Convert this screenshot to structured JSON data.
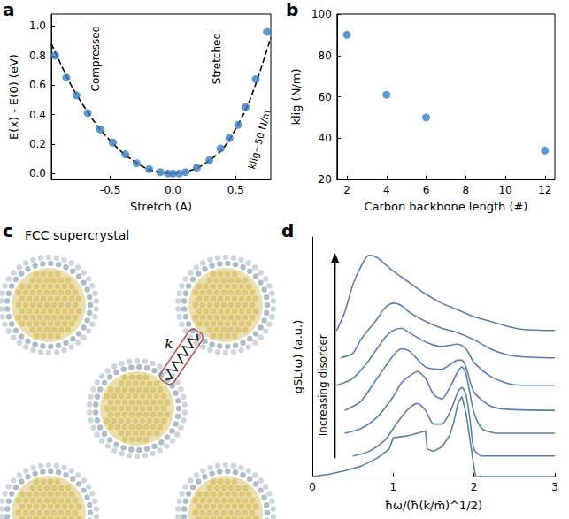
{
  "chart_data": [
    {
      "type": "scatter",
      "panel": "a",
      "xlabel": "Stretch (A)",
      "ylabel": "E(x) - E(0) (eV)",
      "xlim": [
        -0.97,
        0.78
      ],
      "xticks": [
        -0.5,
        {
          "value": 0,
          "label": "0.0"
        },
        0.5
      ],
      "ylim": [
        -0.04,
        1.08
      ],
      "yticks": [
        {
          "value": 0,
          "label": "0.0"
        },
        0.2,
        0.4,
        0.6,
        0.8,
        {
          "value": 1,
          "label": "1.0"
        }
      ],
      "grid": false,
      "annotations": [
        "Compressed",
        "Stretched",
        "klig~50 N/m"
      ],
      "series": [
        {
          "type": "scatter",
          "marker": "circle",
          "color": "#3a7cc0",
          "x": [
            -0.94,
            -0.85,
            -0.77,
            -0.68,
            -0.58,
            -0.48,
            -0.38,
            -0.29,
            -0.19,
            -0.1,
            -0.04,
            0.0,
            0.05,
            0.1,
            0.19,
            0.29,
            0.38,
            0.45,
            0.52,
            0.58,
            0.66,
            0.75
          ],
          "values": [
            0.8,
            0.65,
            0.53,
            0.41,
            0.3,
            0.21,
            0.13,
            0.07,
            0.03,
            0.01,
            0.0,
            0.0,
            0.0,
            0.01,
            0.04,
            0.09,
            0.17,
            0.24,
            0.33,
            0.45,
            0.64,
            0.96
          ]
        },
        {
          "type": "line",
          "line_style": "dashed",
          "color": "#000000",
          "x": [
            -0.97,
            -0.8,
            -0.6,
            -0.4,
            -0.2,
            0.0,
            0.2,
            0.4,
            0.6,
            0.78
          ],
          "values": [
            0.88,
            0.58,
            0.32,
            0.14,
            0.03,
            0.0,
            0.04,
            0.17,
            0.47,
            0.92
          ]
        }
      ]
    },
    {
      "type": "scatter",
      "panel": "b",
      "xlabel": "Carbon backbone length (#)",
      "ylabel": "klig (N/m)",
      "xlim": [
        1.5,
        12.5
      ],
      "xticks": [
        2,
        4,
        6,
        8,
        10,
        12
      ],
      "ylim": [
        20,
        100
      ],
      "yticks": [
        20,
        40,
        60,
        80,
        100
      ],
      "grid": false,
      "series": [
        {
          "type": "scatter",
          "marker": "circle",
          "color": "#3a7cc0",
          "x": [
            2,
            4,
            6,
            12
          ],
          "values": [
            90,
            61,
            50,
            34
          ]
        }
      ]
    },
    {
      "type": "diagram",
      "panel": "c",
      "title": "FCC supercrystal",
      "annotations": [
        "k"
      ]
    },
    {
      "type": "line",
      "panel": "d",
      "xlabel": "ħω/(ħ(k̄/m̄)^1/2)",
      "ylabel": "gSL(ω) (a.u.)",
      "xlim": [
        0,
        3
      ],
      "xticks": [
        0,
        1,
        2,
        3
      ],
      "ylim": [
        0,
        10.5
      ],
      "tick_labels": "x",
      "grid": false,
      "annotations": [
        "Increasing disorder"
      ],
      "series": [
        {
          "type": "line",
          "marker": "none",
          "color": "#5b7fae",
          "x": [
            0,
            0.2,
            0.4,
            0.6,
            0.8,
            0.95,
            1.0,
            1.1,
            1.2,
            1.3,
            1.4,
            1.42,
            1.5,
            1.6,
            1.7,
            1.75,
            1.8,
            1.85,
            1.9,
            1.95,
            2.0,
            2.02,
            2.5,
            3.0
          ],
          "values": [
            0,
            0.1,
            0.25,
            0.45,
            0.8,
            1.2,
            1.7,
            1.75,
            1.8,
            1.9,
            2.0,
            1.2,
            1.1,
            1.3,
            1.8,
            2.4,
            3.2,
            3.5,
            2.8,
            1.6,
            0.4,
            0,
            0,
            0
          ]
        },
        {
          "type": "line",
          "marker": "none",
          "color": "#5b7fae",
          "x": [
            0.5,
            0.7,
            0.9,
            1.0,
            1.1,
            1.2,
            1.3,
            1.4,
            1.5,
            1.6,
            1.7,
            1.8,
            1.85,
            1.9,
            1.95,
            2.0,
            2.1,
            3.0
          ],
          "values": [
            0.9,
            1.1,
            1.6,
            2.1,
            2.6,
            3.0,
            3.2,
            2.9,
            2.3,
            2.3,
            2.8,
            3.7,
            3.9,
            3.6,
            2.5,
            1.2,
            0.9,
            0.9
          ]
        },
        {
          "type": "line",
          "marker": "none",
          "color": "#5b7fae",
          "x": [
            0.4,
            0.6,
            0.8,
            1.0,
            1.1,
            1.2,
            1.3,
            1.4,
            1.5,
            1.6,
            1.7,
            1.8,
            1.85,
            1.9,
            2.0,
            2.1,
            2.3,
            3.0
          ],
          "values": [
            1.9,
            2.1,
            2.6,
            3.5,
            4.1,
            4.4,
            4.6,
            4.3,
            3.6,
            3.4,
            3.9,
            4.6,
            4.8,
            4.5,
            2.8,
            2.1,
            1.9,
            1.9
          ]
        },
        {
          "type": "line",
          "marker": "none",
          "color": "#5b7fae",
          "x": [
            0.4,
            0.6,
            0.8,
            1.0,
            1.1,
            1.2,
            1.4,
            1.6,
            1.8,
            1.85,
            1.9,
            2.0,
            2.2,
            2.4,
            3.0
          ],
          "values": [
            2.9,
            3.3,
            4.3,
            5.3,
            5.6,
            5.5,
            4.8,
            4.7,
            5.1,
            5.1,
            4.8,
            3.7,
            3.1,
            2.95,
            2.9
          ]
        },
        {
          "type": "line",
          "marker": "none",
          "color": "#5b7fae",
          "x": [
            0.3,
            0.5,
            0.7,
            0.9,
            1.0,
            1.1,
            1.2,
            1.4,
            1.6,
            1.8,
            1.9,
            2.0,
            2.2,
            2.4,
            2.6,
            3.0
          ],
          "values": [
            4.0,
            4.3,
            5.1,
            6.1,
            6.4,
            6.5,
            6.3,
            5.9,
            5.7,
            5.8,
            5.6,
            5.0,
            4.4,
            4.1,
            4.0,
            4.0
          ]
        },
        {
          "type": "line",
          "marker": "none",
          "color": "#5b7fae",
          "x": [
            0.35,
            0.5,
            0.6,
            0.8,
            0.9,
            1.0,
            1.1,
            1.2,
            1.4,
            1.6,
            1.8,
            2.0,
            2.2,
            2.4,
            2.6,
            3.0
          ],
          "values": [
            5.2,
            5.4,
            6.0,
            6.9,
            7.4,
            7.6,
            7.5,
            7.2,
            6.8,
            6.5,
            6.3,
            6.0,
            5.6,
            5.35,
            5.25,
            5.2
          ]
        },
        {
          "type": "line",
          "marker": "none",
          "color": "#5b7fae",
          "x": [
            0.3,
            0.4,
            0.5,
            0.6,
            0.7,
            0.8,
            0.9,
            1.0,
            1.2,
            1.4,
            1.6,
            1.8,
            2.0,
            2.2,
            2.4,
            2.6,
            3.0
          ],
          "values": [
            6.4,
            7.2,
            8.4,
            9.2,
            9.7,
            9.6,
            9.3,
            9.0,
            8.5,
            8.0,
            7.6,
            7.3,
            7.0,
            6.8,
            6.6,
            6.45,
            6.4
          ]
        }
      ]
    }
  ]
}
